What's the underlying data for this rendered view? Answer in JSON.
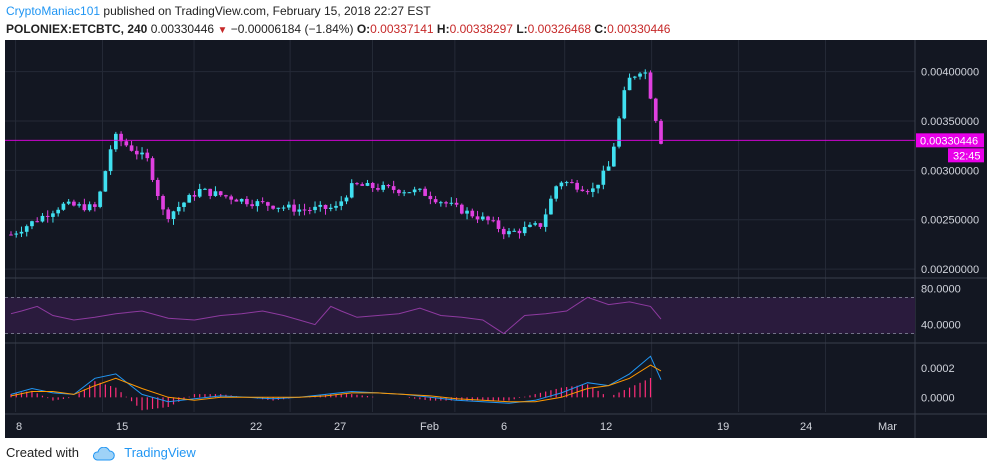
{
  "header": {
    "author": "CryptoManiac101",
    "published_text": " published on TradingView.com, February 15, 2018 22:27 EST",
    "symbol": "POLONIEX:ETCBTC, 240",
    "last": "0.00330446",
    "change": "−0.00006184 (−1.84%)",
    "o_label": "O:",
    "o_value": "0.00337141",
    "h_label": "H:",
    "h_value": "0.00338297",
    "l_label": "L:",
    "l_value": "0.00326468",
    "c_label": "C:",
    "c_value": "0.00330446"
  },
  "footer": {
    "created_with": "Created with",
    "brand": "TradingView"
  },
  "colors": {
    "background": "#131722",
    "up": "#40e0f0",
    "down": "#e040e0",
    "rsi": "#8e3aa0",
    "macd": "#2196f3",
    "signal": "#ff9800",
    "hist": "#ff2d7a",
    "price_tag": "#e900e9",
    "grid": "#252a37",
    "axis_text": "#d1d4dc"
  },
  "chart_data": [
    {
      "type": "candlestick",
      "price_axis_ticks": [
        "0.00400000",
        "0.00350000",
        "0.00300000",
        "0.00250000",
        "0.00200000"
      ],
      "ylim": [
        0.00193,
        0.00426
      ],
      "last_price_label": "0.00330446",
      "countdown_label": "32:45",
      "x_ticks": [
        "8",
        "15",
        "22",
        "27",
        "Feb",
        "6",
        "12",
        "19",
        "24",
        "Mar"
      ],
      "series": [
        {
          "name": "ETCBTC",
          "date": "Jan 8",
          "close": 0.00235
        },
        {
          "name": "ETCBTC",
          "date": "Jan 11",
          "close": 0.00265
        },
        {
          "name": "ETCBTC",
          "date": "Jan 13",
          "close": 0.00262
        },
        {
          "name": "ETCBTC",
          "date": "Jan 14",
          "close": 0.00335
        },
        {
          "name": "ETCBTC",
          "date": "Jan 16",
          "close": 0.0031
        },
        {
          "name": "ETCBTC",
          "date": "Jan 17",
          "close": 0.00252
        },
        {
          "name": "ETCBTC",
          "date": "Jan 19",
          "close": 0.0028
        },
        {
          "name": "ETCBTC",
          "date": "Jan 22",
          "close": 0.00268
        },
        {
          "name": "ETCBTC",
          "date": "Jan 25",
          "close": 0.0026
        },
        {
          "name": "ETCBTC",
          "date": "Jan 27",
          "close": 0.00262
        },
        {
          "name": "ETCBTC",
          "date": "Jan 28",
          "close": 0.00285
        },
        {
          "name": "ETCBTC",
          "date": "Feb 1",
          "close": 0.00278
        },
        {
          "name": "ETCBTC",
          "date": "Feb 3",
          "close": 0.00262
        },
        {
          "name": "ETCBTC",
          "date": "Feb 5",
          "close": 0.00248
        },
        {
          "name": "ETCBTC",
          "date": "Feb 6",
          "close": 0.00236
        },
        {
          "name": "ETCBTC",
          "date": "Feb 8",
          "close": 0.00245
        },
        {
          "name": "ETCBTC",
          "date": "Feb 9",
          "close": 0.0029
        },
        {
          "name": "ETCBTC",
          "date": "Feb 11",
          "close": 0.0028
        },
        {
          "name": "ETCBTC",
          "date": "Feb 12",
          "close": 0.00305
        },
        {
          "name": "ETCBTC",
          "date": "Feb 13",
          "close": 0.0039
        },
        {
          "name": "ETCBTC",
          "date": "Feb 14",
          "close": 0.00405
        },
        {
          "name": "ETCBTC",
          "date": "Feb 15",
          "close": 0.0033
        }
      ]
    },
    {
      "type": "line",
      "name": "RSI",
      "axis_ticks": [
        "80.0000",
        "40.0000"
      ],
      "ylim": [
        23,
        88
      ],
      "bands": [
        70,
        30
      ],
      "x": [
        0,
        2,
        5,
        8,
        12,
        16,
        20,
        25,
        30,
        35,
        40,
        44,
        48,
        52,
        55,
        58,
        61,
        63,
        66,
        70,
        74,
        78,
        82,
        86,
        90,
        94,
        98,
        102,
        106,
        110,
        114,
        118,
        122,
        124
      ],
      "values": [
        52,
        55,
        60,
        50,
        45,
        48,
        52,
        55,
        47,
        45,
        50,
        52,
        55,
        50,
        45,
        40,
        60,
        55,
        48,
        50,
        52,
        58,
        50,
        48,
        45,
        30,
        50,
        52,
        55,
        70,
        62,
        65,
        60,
        46
      ]
    },
    {
      "type": "line",
      "name": "MACD",
      "axis_ticks": [
        "0.0002",
        "0.0000"
      ],
      "ylim": [
        -0.0001,
        0.00035
      ],
      "x": [
        0,
        4,
        8,
        12,
        16,
        20,
        25,
        30,
        35,
        40,
        45,
        50,
        55,
        60,
        65,
        70,
        75,
        80,
        85,
        90,
        95,
        100,
        105,
        110,
        114,
        118,
        122,
        124
      ],
      "macd": [
        2e-05,
        6e-05,
        3e-05,
        2e-05,
        0.00013,
        0.00016,
        2e-05,
        -3e-05,
        -1e-05,
        1e-05,
        0.0,
        -1e-05,
        0.0,
        2e-05,
        4e-05,
        3e-05,
        2e-05,
        0.0,
        -2e-05,
        -3e-05,
        -4e-05,
        -2e-05,
        3e-05,
        0.0001,
        8e-05,
        0.00016,
        0.00028,
        0.00012
      ],
      "signal": [
        1e-05,
        4e-05,
        4e-05,
        2e-05,
        8e-05,
        0.00013,
        6e-05,
        0.0,
        -2e-05,
        0.0,
        0.0,
        0.0,
        0.0,
        1e-05,
        3e-05,
        3e-05,
        2e-05,
        1e-05,
        -1e-05,
        -2e-05,
        -3e-05,
        -3e-05,
        0.0,
        6e-05,
        8e-05,
        0.00013,
        0.00022,
        0.00018
      ]
    }
  ]
}
